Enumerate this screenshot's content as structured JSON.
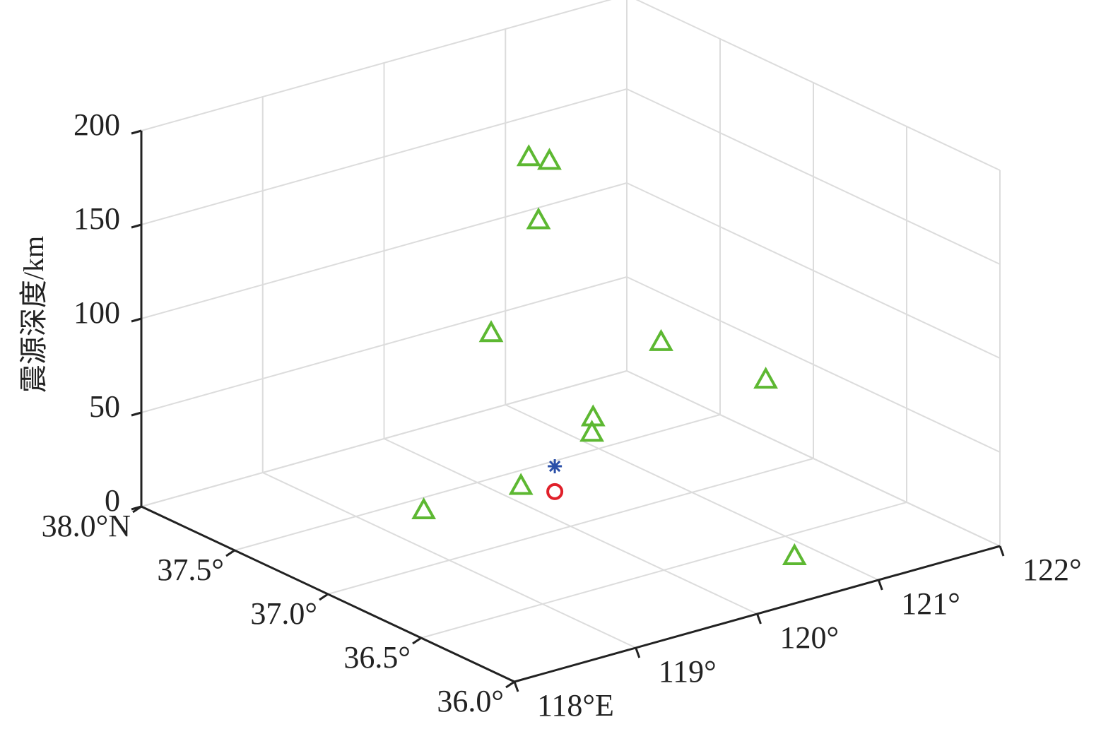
{
  "chart_data": {
    "type": "scatter3d",
    "zlabel": "震源深度/km",
    "xlim": [
      118,
      122
    ],
    "xticks": [
      {
        "value": 118,
        "label": "118°E"
      },
      {
        "value": 119,
        "label": "119°"
      },
      {
        "value": 120,
        "label": "120°"
      },
      {
        "value": 121,
        "label": "121°"
      },
      {
        "value": 122,
        "label": "122°"
      }
    ],
    "ylim": [
      36,
      38
    ],
    "yticks": [
      {
        "value": 36,
        "label": "36.0°"
      },
      {
        "value": 36.5,
        "label": "36.5°"
      },
      {
        "value": 37,
        "label": "37.0°"
      },
      {
        "value": 37.5,
        "label": "37.5°"
      },
      {
        "value": 38,
        "label": "38.0°N"
      }
    ],
    "zlim": [
      0,
      200
    ],
    "zticks": [
      0,
      50,
      100,
      150,
      200
    ],
    "grid": true,
    "series": [
      {
        "marker": "triangle",
        "color": "#5db832",
        "x": [
          119.42,
          120.19,
          120.83,
          120.27,
          120.44,
          120.35,
          119.96,
          121.36,
          121.3,
          120.8,
          120.79
        ],
        "y": [
          37.41,
          37.39,
          36.34,
          37.4,
          37.4,
          37.4,
          37.4,
          37.4,
          36.8,
          37.4,
          37.4
        ],
        "z": [
          0,
          0,
          0,
          173,
          168,
          138,
          85,
          55,
          64,
          25,
          17
        ]
      },
      {
        "marker": "circle",
        "color": "#e0202a",
        "x": [
          120.3
        ],
        "y": [
          37.28
        ],
        "z": [
          0
        ]
      },
      {
        "marker": "asterisk",
        "color": "#2a4fa8",
        "x": [
          120.3
        ],
        "y": [
          37.28
        ],
        "z": [
          13.5
        ]
      }
    ]
  }
}
